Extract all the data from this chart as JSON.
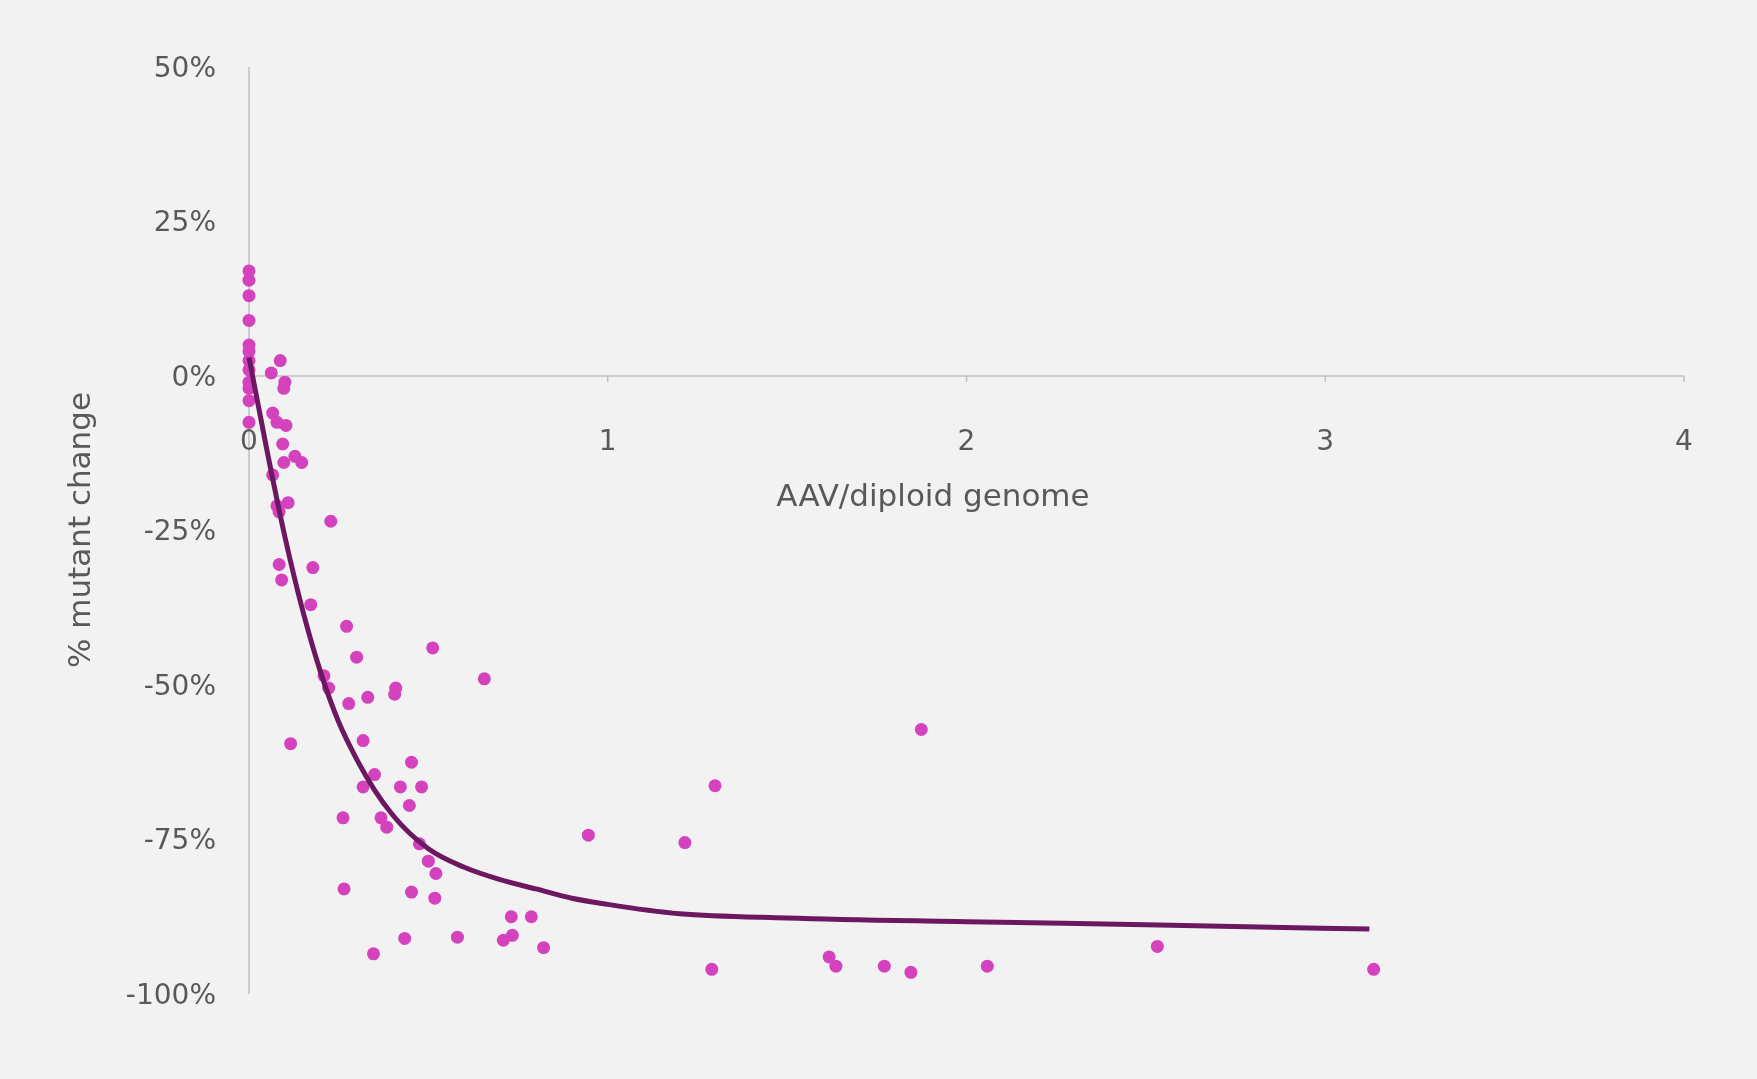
{
  "chart_data": {
    "type": "scatter",
    "xlabel": "AAV/diploid genome",
    "ylabel": "% mutant change",
    "xlim": [
      0,
      4
    ],
    "ylim": [
      -100,
      50
    ],
    "xticks": [
      0,
      1,
      2,
      3,
      4
    ],
    "yticks": [
      {
        "value": -100,
        "label": "-100%"
      },
      {
        "value": -75,
        "label": "-75%"
      },
      {
        "value": -50,
        "label": "-50%"
      },
      {
        "value": -25,
        "label": "-25%"
      },
      {
        "value": 0,
        "label": "0%"
      },
      {
        "value": 25,
        "label": "25%"
      },
      {
        "value": 50,
        "label": "50%"
      }
    ],
    "grid": false,
    "series": [
      {
        "color": "#d442bd",
        "marker": "circle",
        "x": [
          0,
          0,
          0,
          0,
          0,
          0,
          0,
          0,
          0,
          0,
          0,
          0,
          0.087,
          0.062,
          0.1,
          0.097,
          0.066,
          0.078,
          0.103,
          0.094,
          0.097,
          0.128,
          0.147,
          0.066,
          0.078,
          0.084,
          0.109,
          0.228,
          0.084,
          0.091,
          0.178,
          0.172,
          0.272,
          0.3,
          0.209,
          0.222,
          0.331,
          0.409,
          0.406,
          0.278,
          0.512,
          0.656,
          0.116,
          0.318,
          0.453,
          0.35,
          0.318,
          0.422,
          0.481,
          0.447,
          0.262,
          0.368,
          0.384,
          0.475,
          0.5,
          0.521,
          0.265,
          0.453,
          0.518,
          0.347,
          0.434,
          0.581,
          0.709,
          0.734,
          0.731,
          0.787,
          0.821,
          0.946,
          1.215,
          1.299,
          1.29,
          1.874,
          1.617,
          1.636,
          1.771,
          1.845,
          2.058,
          2.532,
          3.135
        ],
        "values": [
          17,
          15.5,
          13,
          9,
          5,
          4,
          2.5,
          1,
          -1,
          -2,
          -4,
          -7.5,
          2.5,
          0.5,
          -1,
          -2,
          -6,
          -7.5,
          -8,
          -11,
          -14,
          -13,
          -14,
          -16,
          -21,
          -22,
          -20.5,
          -23.5,
          -30.5,
          -33,
          -31,
          -37,
          -40.5,
          -45.5,
          -48.5,
          -50.5,
          -52,
          -50.5,
          -51.5,
          -53,
          -44,
          -49,
          -59.5,
          -59,
          -62.5,
          -64.5,
          -66.5,
          -66.5,
          -66.5,
          -69.5,
          -71.5,
          -71.5,
          -73,
          -75.7,
          -78.5,
          -80.5,
          -83,
          -83.5,
          -84.5,
          -93.5,
          -91,
          -90.8,
          -91.3,
          -90.5,
          -87.5,
          -87.5,
          -92.5,
          -74.3,
          -75.5,
          -66.3,
          -96,
          -57.2,
          -94,
          -95.5,
          -95.5,
          -96.5,
          -95.5,
          -92.3,
          -96
        ]
      },
      {
        "type": "line",
        "color": "#6b1860",
        "marker": "none",
        "line_style": "solid",
        "x": [
          0,
          0.05,
          0.1,
          0.15,
          0.2,
          0.25,
          0.3,
          0.35,
          0.4,
          0.5,
          0.6,
          0.7,
          0.8,
          0.9,
          1.0,
          1.2,
          1.5,
          2.0,
          2.5,
          3.123
        ],
        "values": [
          3,
          -12,
          -26,
          -38,
          -48,
          -56,
          -62,
          -67,
          -71,
          -76.5,
          -79.5,
          -81.5,
          -83,
          -84.5,
          -85.5,
          -87,
          -87.7,
          -88.3,
          -88.8,
          -89.5
        ]
      }
    ]
  }
}
